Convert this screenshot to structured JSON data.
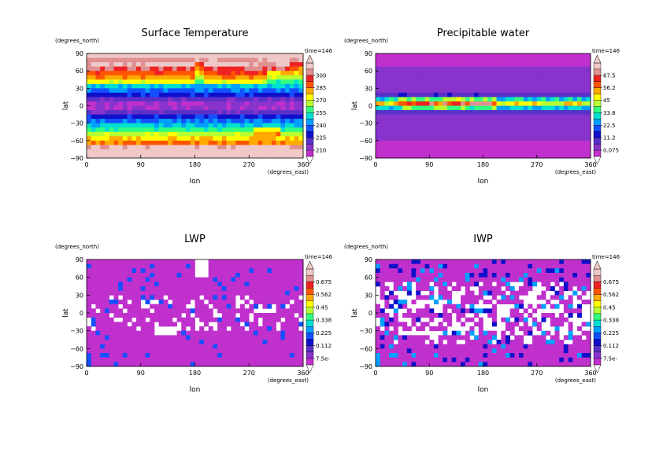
{
  "page": {
    "background": "#ffffff"
  },
  "palette": [
    "#f0c8c8",
    "#e09090",
    "#ee2222",
    "#ff5500",
    "#ffaa00",
    "#ffff00",
    "#b8ff30",
    "#30ff80",
    "#00e0d0",
    "#00a0ff",
    "#1450ff",
    "#1010cc",
    "#5a30c8",
    "#8833cc",
    "#c030cc"
  ],
  "chart_data": [
    {
      "type": "heatmap",
      "title": "Surface Temperature",
      "xlabel": "lon",
      "ylabel": "lat",
      "x_units": "(degrees_east)",
      "y_units": "(degrees_north)",
      "time_label": "time=146",
      "xlim": [
        0,
        360
      ],
      "ylim": [
        -90,
        90
      ],
      "xticks": [
        "0",
        "90",
        "180",
        "270",
        "360"
      ],
      "yticks": [
        "90",
        "60",
        "30",
        "0",
        "−30",
        "−60",
        "−90"
      ],
      "colorbar_labels": [
        "300",
        "285",
        "270",
        "255",
        "240",
        "225",
        "210"
      ],
      "field": "temperature"
    },
    {
      "type": "heatmap",
      "title": "Precipitable water",
      "xlabel": "lon",
      "ylabel": "lat",
      "x_units": "(degrees_east)",
      "y_units": "(degrees_north)",
      "time_label": "time=146",
      "xlim": [
        0,
        360
      ],
      "ylim": [
        -90,
        90
      ],
      "xticks": [
        "0",
        "90",
        "180",
        "270",
        "360"
      ],
      "yticks": [
        "90",
        "60",
        "30",
        "0",
        "−30",
        "−60",
        "−90"
      ],
      "colorbar_labels": [
        "67.5",
        "56.2",
        "45",
        "33.8",
        "22.5",
        "11.2",
        "0.075"
      ],
      "field": "pwater"
    },
    {
      "type": "heatmap",
      "title": "LWP",
      "xlabel": "lon",
      "ylabel": "lat",
      "x_units": "(degrees_east)",
      "y_units": "(degrees_north)",
      "time_label": "time=146",
      "xlim": [
        0,
        360
      ],
      "ylim": [
        -90,
        90
      ],
      "xticks": [
        "0",
        "90",
        "180",
        "270",
        "360"
      ],
      "yticks": [
        "90",
        "60",
        "30",
        "0",
        "−30",
        "−60",
        "−90"
      ],
      "colorbar_labels": [
        "0.675",
        "0.562",
        "0.45",
        "0.338",
        "0.225",
        "0.112",
        "7.5e-"
      ],
      "field": "lwp"
    },
    {
      "type": "heatmap",
      "title": "IWP",
      "xlabel": "lon",
      "ylabel": "lat",
      "x_units": "(degrees_east)",
      "y_units": "(degrees_north)",
      "time_label": "time=146",
      "xlim": [
        0,
        360
      ],
      "ylim": [
        -90,
        90
      ],
      "xticks": [
        "0",
        "90",
        "180",
        "270",
        "360"
      ],
      "yticks": [
        "90",
        "60",
        "30",
        "0",
        "−30",
        "−60",
        "−90"
      ],
      "colorbar_labels": [
        "0.675",
        "0.562",
        "0.45",
        "0.338",
        "0.225",
        "0.112",
        "7.5e-"
      ],
      "field": "iwp"
    }
  ]
}
